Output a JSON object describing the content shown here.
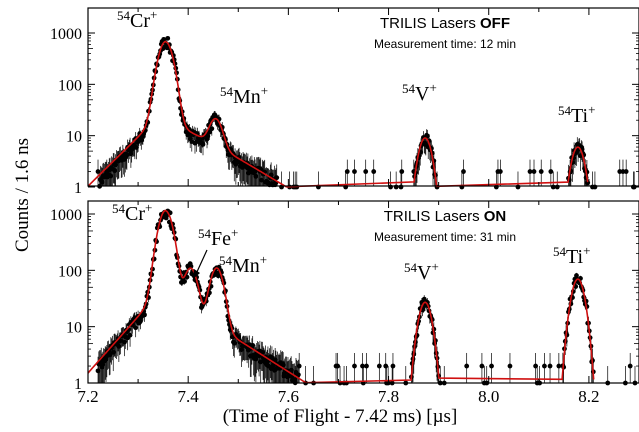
{
  "chart_data": {
    "type": "line",
    "xlabel": "(Time of Flight - 7.42 ms)  [µs]",
    "ylabel": "Counts / 1.6 ns",
    "xlim": [
      7.2,
      8.3
    ],
    "x_ticks": [
      "7.2",
      "7.4",
      "7.6",
      "7.8",
      "8.0",
      "8.2"
    ],
    "y_scale": "log",
    "ylim": [
      1,
      2000
    ],
    "y_ticks": [
      "1",
      "10",
      "100",
      "1000"
    ],
    "panels": [
      {
        "annotation_plain": "TRILIS Lasers ",
        "annotation_bold": "OFF",
        "subtitle": "Measurement time: 12 min",
        "peaks": [
          {
            "mass": "54",
            "element": "Cr",
            "charge": "+",
            "x": 7.355,
            "height": 650
          },
          {
            "mass": "54",
            "element": "Mn",
            "charge": "+",
            "x": 7.455,
            "height": 15
          },
          {
            "mass": "54",
            "element": "V",
            "charge": "+",
            "x": 7.873,
            "height": 9
          },
          {
            "mass": "54",
            "element": "Ti",
            "charge": "+",
            "x": 8.178,
            "height": 6
          }
        ]
      },
      {
        "annotation_plain": "TRILIS Lasers ",
        "annotation_bold": "ON",
        "subtitle": "Measurement time: 31 min",
        "peaks": [
          {
            "mass": "54",
            "element": "Cr",
            "charge": "+",
            "x": 7.355,
            "height": 1100
          },
          {
            "mass": "54",
            "element": "Fe",
            "charge": "+",
            "x": 7.405,
            "height": 90
          },
          {
            "mass": "54",
            "element": "Mn",
            "charge": "+",
            "x": 7.457,
            "height": 100
          },
          {
            "mass": "54",
            "element": "V",
            "charge": "+",
            "x": 7.873,
            "height": 27
          },
          {
            "mass": "54",
            "element": "Ti",
            "charge": "+",
            "x": 8.178,
            "height": 70
          }
        ]
      }
    ]
  }
}
